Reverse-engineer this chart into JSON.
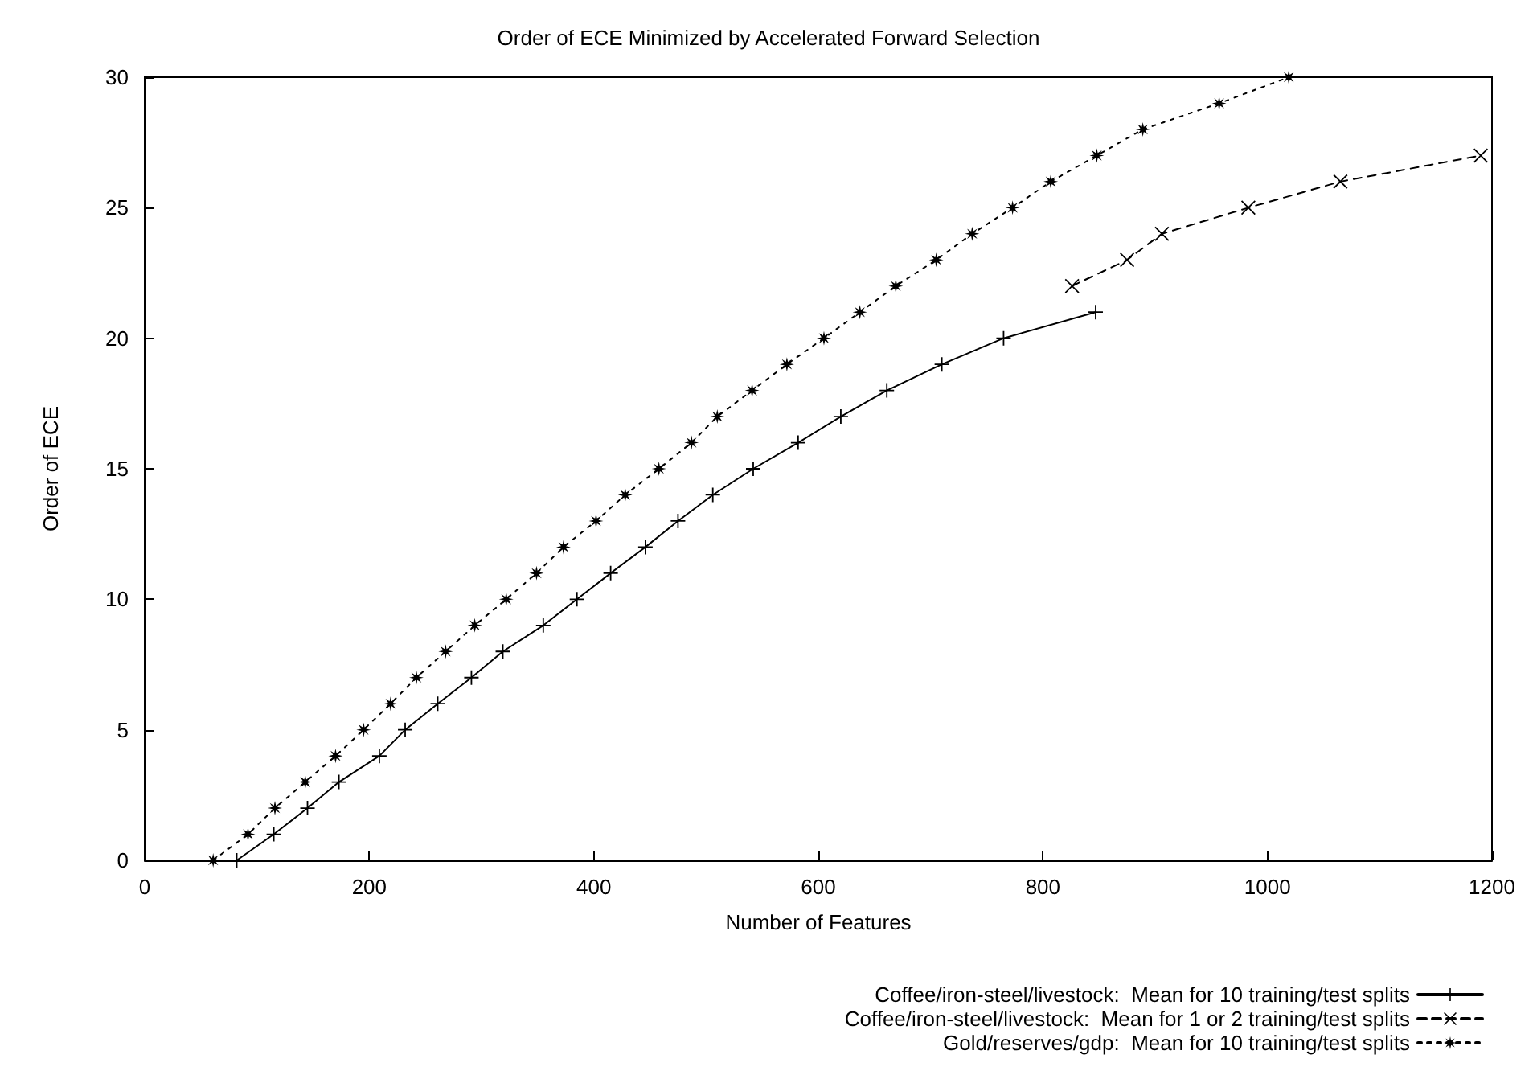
{
  "chart_data": {
    "type": "line",
    "title": "Order of ECE Minimized by Accelerated Forward Selection",
    "xlabel": "Number of Features",
    "ylabel": "Order of ECE",
    "xlim": [
      0,
      1200
    ],
    "xticks": [
      0,
      200,
      400,
      600,
      800,
      1000,
      1200
    ],
    "ylim": [
      0,
      30
    ],
    "yticks": [
      0,
      5,
      10,
      15,
      20,
      25,
      30
    ],
    "grid": false,
    "legend": "bottom right",
    "series": [
      {
        "name": "Coffee/iron-steel/livestock:  Mean for 10 training/test splits",
        "color": "#000000",
        "marker": "plus",
        "line_style": "solid",
        "x": [
          82,
          115,
          145,
          173,
          209,
          232,
          261,
          291,
          319,
          355,
          385,
          415,
          446,
          475,
          506,
          542,
          582,
          620,
          661,
          710,
          765,
          847
        ],
        "values": [
          0,
          1,
          2,
          3,
          4,
          5,
          6,
          7,
          8,
          9,
          10,
          11,
          12,
          13,
          14,
          15,
          16,
          17,
          18,
          19,
          20,
          21
        ]
      },
      {
        "name": "Coffee/iron-steel/livestock:  Mean for 1 or 2 training/test splits",
        "color": "#000000",
        "marker": "cross",
        "line_style": "dashed",
        "x": [
          826,
          875,
          906,
          983,
          1065,
          1190
        ],
        "values": [
          22,
          23,
          24,
          25,
          26,
          27
        ]
      },
      {
        "name": "Gold/reserves/gdp:  Mean for 10 training/test splits",
        "color": "#000000",
        "marker": "star",
        "line_style": "dotted",
        "x": [
          61,
          92,
          116,
          143,
          170,
          195,
          219,
          242,
          268,
          294,
          322,
          349,
          373,
          402,
          428,
          458,
          487,
          510,
          541,
          572,
          605,
          637,
          669,
          705,
          737,
          773,
          807,
          848,
          889,
          957,
          1019
        ],
        "values": [
          0,
          1,
          2,
          3,
          4,
          5,
          6,
          7,
          8,
          9,
          10,
          11,
          12,
          13,
          14,
          15,
          16,
          17,
          18,
          19,
          20,
          21,
          22,
          23,
          24,
          25,
          26,
          27,
          28,
          29,
          30
        ]
      }
    ]
  }
}
